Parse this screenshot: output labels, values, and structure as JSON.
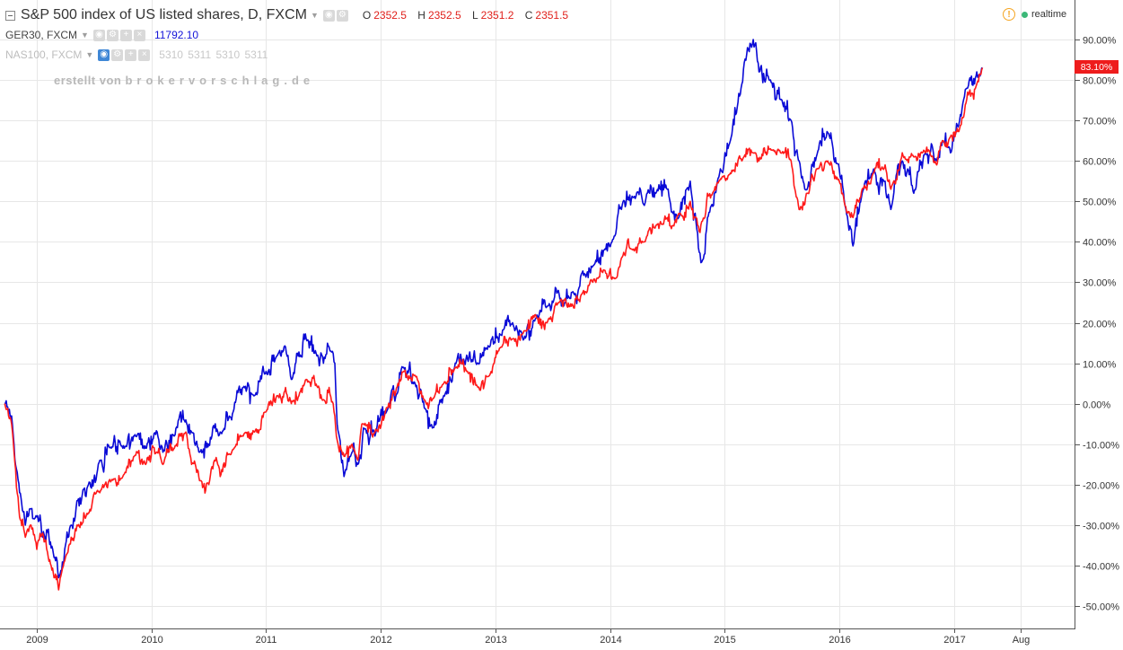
{
  "header": {
    "title": "S&P 500 index of US listed shares, D, FXCM",
    "ohlc": [
      {
        "key": "O",
        "value": "2352.5"
      },
      {
        "key": "H",
        "value": "2352.5"
      },
      {
        "key": "L",
        "value": "2351.2"
      },
      {
        "key": "C",
        "value": "2351.5"
      }
    ],
    "realtime_label": "realtime"
  },
  "comparisons": [
    {
      "label": "GER30, FXCM",
      "value": "11792.10"
    },
    {
      "label": "NAS100, FXCM",
      "value": "5310  5311  5310  5311"
    }
  ],
  "watermark": {
    "prefix": "erstellt von",
    "domain": "brokervorschlag.de"
  },
  "last_value_badge": "83.10%",
  "colors": {
    "sp500": "#ff1a1a",
    "ger30": "#0a0ad6",
    "grid": "#e7e7e7",
    "badge": "#ee1c1c"
  },
  "chart_data": {
    "type": "line",
    "x_tick_labels": [
      "2009",
      "2010",
      "2011",
      "2012",
      "2013",
      "2014",
      "2015",
      "2016",
      "2017",
      "Aug"
    ],
    "y_tick_labels": [
      "90.00%",
      "80.00%",
      "70.00%",
      "60.00%",
      "50.00%",
      "40.00%",
      "30.00%",
      "20.00%",
      "10.00%",
      "0.00%",
      "-10.00%",
      "-20.00%",
      "-30.00%",
      "-40.00%",
      "-50.00%"
    ],
    "y_unit": "%",
    "ylim": [
      -53,
      97
    ],
    "x_range": [
      2008.7,
      2017.75
    ],
    "grid": true,
    "series": [
      {
        "name": "S&P 500 index of US listed shares, D, FXCM",
        "color": "#ff1a1a",
        "points": [
          [
            2008.72,
            0
          ],
          [
            2008.78,
            -5
          ],
          [
            2008.85,
            -28
          ],
          [
            2008.9,
            -33
          ],
          [
            2008.95,
            -30
          ],
          [
            2009.0,
            -36
          ],
          [
            2009.05,
            -32
          ],
          [
            2009.1,
            -38
          ],
          [
            2009.15,
            -43
          ],
          [
            2009.19,
            -46
          ],
          [
            2009.25,
            -38
          ],
          [
            2009.3,
            -33
          ],
          [
            2009.35,
            -30
          ],
          [
            2009.45,
            -27
          ],
          [
            2009.55,
            -22
          ],
          [
            2009.65,
            -19
          ],
          [
            2009.75,
            -18
          ],
          [
            2009.85,
            -13
          ],
          [
            2009.95,
            -15
          ],
          [
            2010.05,
            -12
          ],
          [
            2010.1,
            -15
          ],
          [
            2010.2,
            -11
          ],
          [
            2010.3,
            -7
          ],
          [
            2010.35,
            -15
          ],
          [
            2010.42,
            -19
          ],
          [
            2010.5,
            -20
          ],
          [
            2010.55,
            -14
          ],
          [
            2010.6,
            -18
          ],
          [
            2010.7,
            -12
          ],
          [
            2010.8,
            -8
          ],
          [
            2010.9,
            -7
          ],
          [
            2011.0,
            -2
          ],
          [
            2011.1,
            2
          ],
          [
            2011.17,
            4
          ],
          [
            2011.22,
            0
          ],
          [
            2011.3,
            3
          ],
          [
            2011.35,
            6
          ],
          [
            2011.45,
            4
          ],
          [
            2011.5,
            1
          ],
          [
            2011.55,
            4
          ],
          [
            2011.6,
            -3
          ],
          [
            2011.62,
            -9
          ],
          [
            2011.68,
            -13
          ],
          [
            2011.75,
            -10
          ],
          [
            2011.8,
            -14
          ],
          [
            2011.85,
            -5
          ],
          [
            2011.95,
            -7
          ],
          [
            2012.05,
            -1
          ],
          [
            2012.15,
            5
          ],
          [
            2012.2,
            8
          ],
          [
            2012.3,
            7
          ],
          [
            2012.38,
            1
          ],
          [
            2012.45,
            1
          ],
          [
            2012.55,
            5
          ],
          [
            2012.65,
            9
          ],
          [
            2012.75,
            8
          ],
          [
            2012.85,
            4
          ],
          [
            2012.95,
            7
          ],
          [
            2013.05,
            14
          ],
          [
            2013.15,
            16
          ],
          [
            2013.25,
            18
          ],
          [
            2013.35,
            22
          ],
          [
            2013.45,
            20
          ],
          [
            2013.55,
            25
          ],
          [
            2013.65,
            24
          ],
          [
            2013.75,
            27
          ],
          [
            2013.85,
            30
          ],
          [
            2013.95,
            33
          ],
          [
            2014.05,
            31
          ],
          [
            2014.1,
            36
          ],
          [
            2014.2,
            38
          ],
          [
            2014.3,
            40
          ],
          [
            2014.4,
            44
          ],
          [
            2014.5,
            46
          ],
          [
            2014.55,
            44
          ],
          [
            2014.6,
            47
          ],
          [
            2014.7,
            50
          ],
          [
            2014.75,
            46
          ],
          [
            2014.8,
            45
          ],
          [
            2014.85,
            52
          ],
          [
            2014.95,
            55
          ],
          [
            2015.05,
            57
          ],
          [
            2015.15,
            60
          ],
          [
            2015.25,
            62
          ],
          [
            2015.3,
            60
          ],
          [
            2015.4,
            63
          ],
          [
            2015.5,
            62
          ],
          [
            2015.58,
            60
          ],
          [
            2015.65,
            48
          ],
          [
            2015.72,
            52
          ],
          [
            2015.8,
            58
          ],
          [
            2015.9,
            60
          ],
          [
            2016.0,
            55
          ],
          [
            2016.05,
            49
          ],
          [
            2016.12,
            46
          ],
          [
            2016.2,
            53
          ],
          [
            2016.3,
            57
          ],
          [
            2016.4,
            59
          ],
          [
            2016.45,
            53
          ],
          [
            2016.55,
            62
          ],
          [
            2016.65,
            61
          ],
          [
            2016.75,
            62
          ],
          [
            2016.85,
            59
          ],
          [
            2016.9,
            65
          ],
          [
            2016.97,
            66
          ],
          [
            2017.05,
            68
          ],
          [
            2017.12,
            77
          ],
          [
            2017.2,
            79
          ],
          [
            2017.25,
            83
          ]
        ]
      },
      {
        "name": "GER30, FXCM",
        "color": "#0a0ad6",
        "points": [
          [
            2008.72,
            0
          ],
          [
            2008.78,
            -3
          ],
          [
            2008.85,
            -22
          ],
          [
            2008.9,
            -30
          ],
          [
            2008.95,
            -26
          ],
          [
            2009.0,
            -28
          ],
          [
            2009.05,
            -33
          ],
          [
            2009.1,
            -31
          ],
          [
            2009.15,
            -38
          ],
          [
            2009.19,
            -43
          ],
          [
            2009.25,
            -35
          ],
          [
            2009.3,
            -30
          ],
          [
            2009.35,
            -24
          ],
          [
            2009.45,
            -20
          ],
          [
            2009.55,
            -14
          ],
          [
            2009.65,
            -11
          ],
          [
            2009.75,
            -11
          ],
          [
            2009.85,
            -8
          ],
          [
            2009.95,
            -11
          ],
          [
            2010.05,
            -7
          ],
          [
            2010.1,
            -12
          ],
          [
            2010.2,
            -8
          ],
          [
            2010.3,
            -4
          ],
          [
            2010.35,
            -7
          ],
          [
            2010.42,
            -12
          ],
          [
            2010.5,
            -10
          ],
          [
            2010.55,
            -6
          ],
          [
            2010.6,
            -7
          ],
          [
            2010.7,
            -4
          ],
          [
            2010.8,
            4
          ],
          [
            2010.9,
            2
          ],
          [
            2011.0,
            8
          ],
          [
            2011.1,
            12
          ],
          [
            2011.17,
            14
          ],
          [
            2011.22,
            6
          ],
          [
            2011.3,
            12
          ],
          [
            2011.35,
            16
          ],
          [
            2011.45,
            12
          ],
          [
            2011.5,
            10
          ],
          [
            2011.55,
            14
          ],
          [
            2011.6,
            10
          ],
          [
            2011.62,
            -5
          ],
          [
            2011.68,
            -18
          ],
          [
            2011.75,
            -12
          ],
          [
            2011.8,
            -15
          ],
          [
            2011.85,
            -6
          ],
          [
            2011.95,
            -8
          ],
          [
            2012.05,
            -2
          ],
          [
            2012.15,
            3
          ],
          [
            2012.2,
            9
          ],
          [
            2012.3,
            5
          ],
          [
            2012.38,
            -1
          ],
          [
            2012.45,
            -6
          ],
          [
            2012.55,
            2
          ],
          [
            2012.65,
            10
          ],
          [
            2012.75,
            12
          ],
          [
            2012.85,
            10
          ],
          [
            2012.95,
            14
          ],
          [
            2013.05,
            17
          ],
          [
            2013.15,
            20
          ],
          [
            2013.25,
            16
          ],
          [
            2013.35,
            21
          ],
          [
            2013.45,
            24
          ],
          [
            2013.55,
            28
          ],
          [
            2013.65,
            26
          ],
          [
            2013.75,
            32
          ],
          [
            2013.85,
            34
          ],
          [
            2013.95,
            38
          ],
          [
            2014.05,
            42
          ],
          [
            2014.1,
            48
          ],
          [
            2014.2,
            51
          ],
          [
            2014.3,
            49
          ],
          [
            2014.4,
            52
          ],
          [
            2014.5,
            53
          ],
          [
            2014.55,
            47
          ],
          [
            2014.6,
            46
          ],
          [
            2014.7,
            55
          ],
          [
            2014.75,
            45
          ],
          [
            2014.8,
            35
          ],
          [
            2014.85,
            46
          ],
          [
            2014.95,
            56
          ],
          [
            2015.05,
            65
          ],
          [
            2015.15,
            79
          ],
          [
            2015.2,
            88
          ],
          [
            2015.25,
            90
          ],
          [
            2015.3,
            82
          ],
          [
            2015.4,
            80
          ],
          [
            2015.5,
            75
          ],
          [
            2015.58,
            70
          ],
          [
            2015.65,
            60
          ],
          [
            2015.72,
            53
          ],
          [
            2015.8,
            61
          ],
          [
            2015.9,
            67
          ],
          [
            2016.0,
            58
          ],
          [
            2016.05,
            49
          ],
          [
            2016.12,
            39
          ],
          [
            2016.2,
            52
          ],
          [
            2016.3,
            58
          ],
          [
            2016.4,
            55
          ],
          [
            2016.45,
            48
          ],
          [
            2016.55,
            60
          ],
          [
            2016.65,
            52
          ],
          [
            2016.75,
            62
          ],
          [
            2016.85,
            60
          ],
          [
            2016.9,
            65
          ],
          [
            2016.97,
            62
          ],
          [
            2017.05,
            70
          ],
          [
            2017.12,
            78
          ],
          [
            2017.2,
            82
          ],
          [
            2017.25,
            83
          ]
        ]
      }
    ]
  }
}
